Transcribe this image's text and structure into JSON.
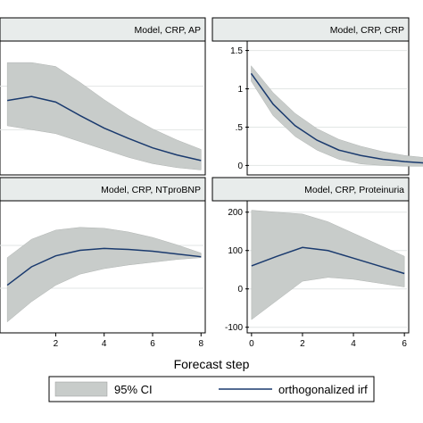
{
  "figure": {
    "xlabel": "Forecast step"
  },
  "legend": {
    "ci_label": "95% CI",
    "irf_label": "orthogonalized irf",
    "ci_color": "#c8ccca",
    "irf_color": "#1a3a6e"
  },
  "chart_data": [
    {
      "type": "area",
      "title": "Model, CRP, AP",
      "x": [
        0,
        1,
        2,
        3,
        4,
        5,
        6,
        7,
        8
      ],
      "series": [
        {
          "name": "orthogonalized irf",
          "values": [
            0.92,
            0.97,
            0.9,
            0.73,
            0.57,
            0.44,
            0.32,
            0.23,
            0.16
          ]
        },
        {
          "name": "95% CI lower",
          "values": [
            0.6,
            0.55,
            0.5,
            0.4,
            0.3,
            0.2,
            0.12,
            0.07,
            0.04
          ]
        },
        {
          "name": "95% CI upper",
          "values": [
            1.4,
            1.4,
            1.35,
            1.15,
            0.93,
            0.73,
            0.56,
            0.42,
            0.3
          ]
        }
      ],
      "ylim": [
        0,
        1.65
      ],
      "yticks": [],
      "xticks": [],
      "grid": true,
      "colors": {
        "band": "#c8ccca",
        "line": "#1a3a6e"
      }
    },
    {
      "type": "area",
      "title": "Model, CRP, CRP",
      "x": [
        0,
        1,
        2,
        3,
        4,
        5,
        6,
        7,
        8
      ],
      "series": [
        {
          "name": "orthogonalized irf",
          "values": [
            1.2,
            0.8,
            0.52,
            0.33,
            0.2,
            0.13,
            0.08,
            0.05,
            0.03
          ]
        },
        {
          "name": "95% CI lower",
          "values": [
            1.1,
            0.65,
            0.38,
            0.2,
            0.08,
            0.02,
            0.0,
            -0.01,
            -0.01
          ]
        },
        {
          "name": "95% CI upper",
          "values": [
            1.3,
            0.95,
            0.68,
            0.48,
            0.34,
            0.25,
            0.18,
            0.13,
            0.1
          ]
        }
      ],
      "ylim": [
        -0.1,
        1.6
      ],
      "yticks": [
        "0",
        ".5",
        "1",
        "1.5"
      ],
      "xticks": [],
      "grid": true,
      "colors": {
        "band": "#c8ccca",
        "line": "#1a3a6e"
      }
    },
    {
      "type": "area",
      "title": "Model, CRP, NTproBNP",
      "x": [
        0,
        1,
        2,
        3,
        4,
        5,
        6,
        7,
        8
      ],
      "series": [
        {
          "name": "orthogonalized irf",
          "values": [
            0.3,
            0.5,
            0.62,
            0.68,
            0.7,
            0.69,
            0.67,
            0.64,
            0.61
          ]
        },
        {
          "name": "95% CI lower",
          "values": [
            -0.1,
            0.12,
            0.3,
            0.42,
            0.48,
            0.52,
            0.55,
            0.58,
            0.6
          ]
        },
        {
          "name": "95% CI upper",
          "values": [
            0.6,
            0.8,
            0.9,
            0.93,
            0.92,
            0.88,
            0.82,
            0.74,
            0.65
          ]
        }
      ],
      "ylim": [
        -0.2,
        1.2
      ],
      "yticks": [],
      "xticks": [
        "2",
        "4",
        "6",
        "8"
      ],
      "grid": true,
      "colors": {
        "band": "#c8ccca",
        "line": "#1a3a6e"
      }
    },
    {
      "type": "area",
      "title": "Model, CRP, Proteinuria",
      "x": [
        0,
        1,
        2,
        3,
        4,
        5,
        6
      ],
      "series": [
        {
          "name": "orthogonalized irf",
          "values": [
            60,
            85,
            108,
            100,
            80,
            60,
            40
          ]
        },
        {
          "name": "95% CI lower",
          "values": [
            -80,
            -30,
            20,
            30,
            25,
            15,
            5
          ]
        },
        {
          "name": "95% CI upper",
          "values": [
            205,
            200,
            195,
            175,
            145,
            115,
            85
          ]
        }
      ],
      "ylim": [
        -110,
        225
      ],
      "yticks": [
        "-100",
        "0",
        "100",
        "200"
      ],
      "xticks": [
        "0",
        "2",
        "4",
        "6"
      ],
      "grid": true,
      "colors": {
        "band": "#c8ccca",
        "line": "#1a3a6e"
      }
    }
  ]
}
